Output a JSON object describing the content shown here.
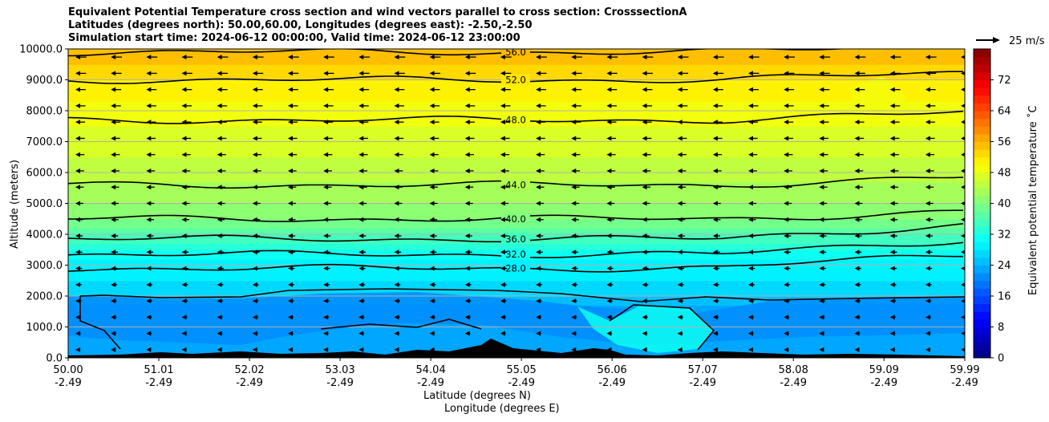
{
  "title_lines": [
    "Equivalent Potential Temperature cross section and wind vectors parallel to cross section: CrosssectionA",
    "Latitudes (degrees north): 50.00,60.00, Longitudes (degrees east): -2.50,-2.50",
    "Simulation start time: 2024-06-12 00:00:00, Valid time: 2024-06-12 23:00:00"
  ],
  "chart_data": {
    "type": "heatmap",
    "ylabel": "Altitude (meters)",
    "xlabel_lat": "Latitude (degrees N)",
    "xlabel_lon": "Longitude (degrees E)",
    "ylim": [
      0,
      10000
    ],
    "y_ticks": [
      "0.0",
      "1000.0",
      "2000.0",
      "3000.0",
      "4000.0",
      "5000.0",
      "6000.0",
      "7000.0",
      "8000.0",
      "9000.0",
      "10000.0"
    ],
    "x_ticks_lat": [
      "50.00",
      "51.01",
      "52.02",
      "53.03",
      "54.04",
      "55.05",
      "56.06",
      "57.07",
      "58.08",
      "59.09",
      "59.99"
    ],
    "x_ticks_lon": [
      "-2.49",
      "-2.49",
      "-2.49",
      "-2.49",
      "-2.49",
      "-2.49",
      "-2.49",
      "-2.49",
      "-2.49",
      "-2.49",
      "-2.49"
    ],
    "horizontal_grid": true,
    "colorbar": {
      "label": "Equivalent potential temperature ˚C",
      "range": [
        0,
        80
      ],
      "ticks": [
        "0",
        "8",
        "16",
        "24",
        "32",
        "40",
        "48",
        "56",
        "64",
        "72"
      ],
      "colormap": "jet"
    },
    "wind_key_label": "25 m/s",
    "contour_levels": [
      {
        "label": "28.0",
        "altitude": 2900
      },
      {
        "label": "32.0",
        "altitude": 3350
      },
      {
        "label": "36.0",
        "altitude": 3850
      },
      {
        "label": "40.0",
        "altitude": 4500
      },
      {
        "label": "44.0",
        "altitude": 5600
      },
      {
        "label": "48.0",
        "altitude": 7700
      },
      {
        "label": "52.0",
        "altitude": 9000
      },
      {
        "label": "56.0",
        "altitude": 9900
      }
    ],
    "theta_e_profile": [
      {
        "altitude": 0,
        "value": 23
      },
      {
        "altitude": 1500,
        "value": 22
      },
      {
        "altitude": 2000,
        "value": 26
      },
      {
        "altitude": 2500,
        "value": 28
      },
      {
        "altitude": 3000,
        "value": 29
      },
      {
        "altitude": 3500,
        "value": 32
      },
      {
        "altitude": 4000,
        "value": 36
      },
      {
        "altitude": 4500,
        "value": 40
      },
      {
        "altitude": 5000,
        "value": 42
      },
      {
        "altitude": 6000,
        "value": 45
      },
      {
        "altitude": 7000,
        "value": 47
      },
      {
        "altitude": 8000,
        "value": 49
      },
      {
        "altitude": 9000,
        "value": 52
      },
      {
        "altitude": 10000,
        "value": 56
      }
    ]
  }
}
